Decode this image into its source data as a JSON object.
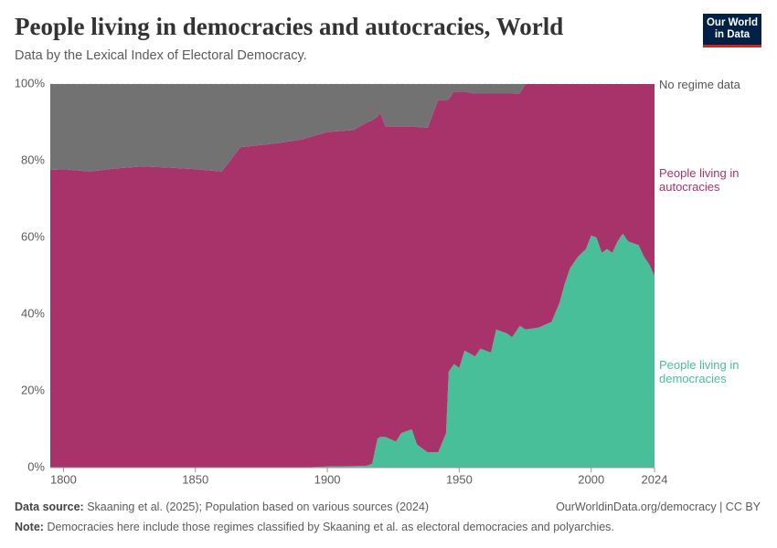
{
  "chart_data": {
    "type": "stacked-area",
    "title": "People living in democracies and autocracies, World",
    "subtitle": "Data by the Lexical Index of Electoral Democracy.",
    "logo": [
      "Our World",
      "in Data"
    ],
    "source_label": "Data source:",
    "source": "Skaaning et al. (2025); Population based on various sources (2024)",
    "url": "OurWorldinData.org/democracy | CC BY",
    "note_label": "Note:",
    "note": "Democracies here include those regimes classified by Skaaning et al. as electoral democracies and polyarchies.",
    "x": [
      1795,
      1800,
      1810,
      1820,
      1830,
      1840,
      1850,
      1860,
      1862,
      1867,
      1880,
      1890,
      1900,
      1910,
      1915,
      1917,
      1919,
      1920,
      1922,
      1926,
      1928,
      1932,
      1934,
      1938,
      1942,
      1945,
      1946,
      1948,
      1950,
      1952,
      1956,
      1958,
      1962,
      1964,
      1968,
      1970,
      1973,
      1975,
      1980,
      1985,
      1988,
      1990,
      1992,
      1995,
      1998,
      2000,
      2002,
      2004,
      2006,
      2008,
      2010,
      2012,
      2014,
      2018,
      2020,
      2022,
      2024
    ],
    "series": [
      {
        "name": "People living in democracies",
        "color": "#48bf99",
        "values": [
          0,
          0,
          0,
          0,
          0,
          0,
          0,
          0,
          0,
          0,
          0,
          0,
          0.3,
          0.4,
          0.5,
          1,
          7.5,
          8,
          8,
          6.8,
          9,
          10,
          6,
          4,
          4,
          9,
          25,
          27,
          26,
          30.5,
          29,
          31,
          30,
          36,
          35,
          34,
          37,
          36,
          36.5,
          38,
          43,
          48,
          52,
          55,
          57,
          60.5,
          60,
          56,
          57,
          56,
          59,
          61,
          59,
          58,
          55,
          53,
          50
        ]
      },
      {
        "name": "People living in autocracies",
        "color": "#a8336a",
        "values": [
          77.6,
          77.8,
          77.2,
          78,
          78.5,
          78.2,
          77.8,
          77.2,
          79,
          83.5,
          84.5,
          85.5,
          87.2,
          87.6,
          89.5,
          89.5,
          84,
          84.5,
          81,
          82.2,
          80,
          79,
          82.8,
          84.6,
          91.8,
          86.8,
          71,
          71,
          72,
          67.5,
          68.5,
          66.5,
          67.5,
          61.5,
          62.5,
          63.5,
          60.6,
          64,
          63.5,
          62,
          57,
          52,
          48,
          45,
          43,
          39.5,
          40,
          44,
          43,
          44,
          41,
          39,
          41,
          42,
          45,
          47,
          50
        ]
      },
      {
        "name": "No regime data",
        "color": "#727272",
        "values": [
          22.4,
          22.2,
          22.8,
          22,
          21.5,
          21.8,
          22.2,
          22.8,
          21,
          16.5,
          15.5,
          14.5,
          12.5,
          12,
          10,
          9.5,
          8.5,
          7.5,
          11,
          11,
          11,
          11,
          11.2,
          11.4,
          4.2,
          4.2,
          4,
          2,
          2,
          2,
          2.5,
          2.5,
          2.5,
          2.5,
          2.5,
          2.5,
          2.4,
          0,
          0,
          0,
          0,
          0,
          0,
          0,
          0,
          0,
          0,
          0,
          0,
          0,
          0,
          0,
          0,
          0,
          0,
          0,
          0
        ]
      }
    ],
    "xlim": [
      1795,
      2024
    ],
    "xticks": [
      1800,
      1850,
      1900,
      1950,
      2000,
      2024
    ],
    "ylim": [
      0,
      100
    ],
    "yticks": [
      {
        "value": 0,
        "label": "0%"
      },
      {
        "value": 20,
        "label": "20%"
      },
      {
        "value": 40,
        "label": "40%"
      },
      {
        "value": 60,
        "label": "60%"
      },
      {
        "value": 80,
        "label": "80%"
      },
      {
        "value": 100,
        "label": "100%"
      }
    ],
    "grid": true
  }
}
